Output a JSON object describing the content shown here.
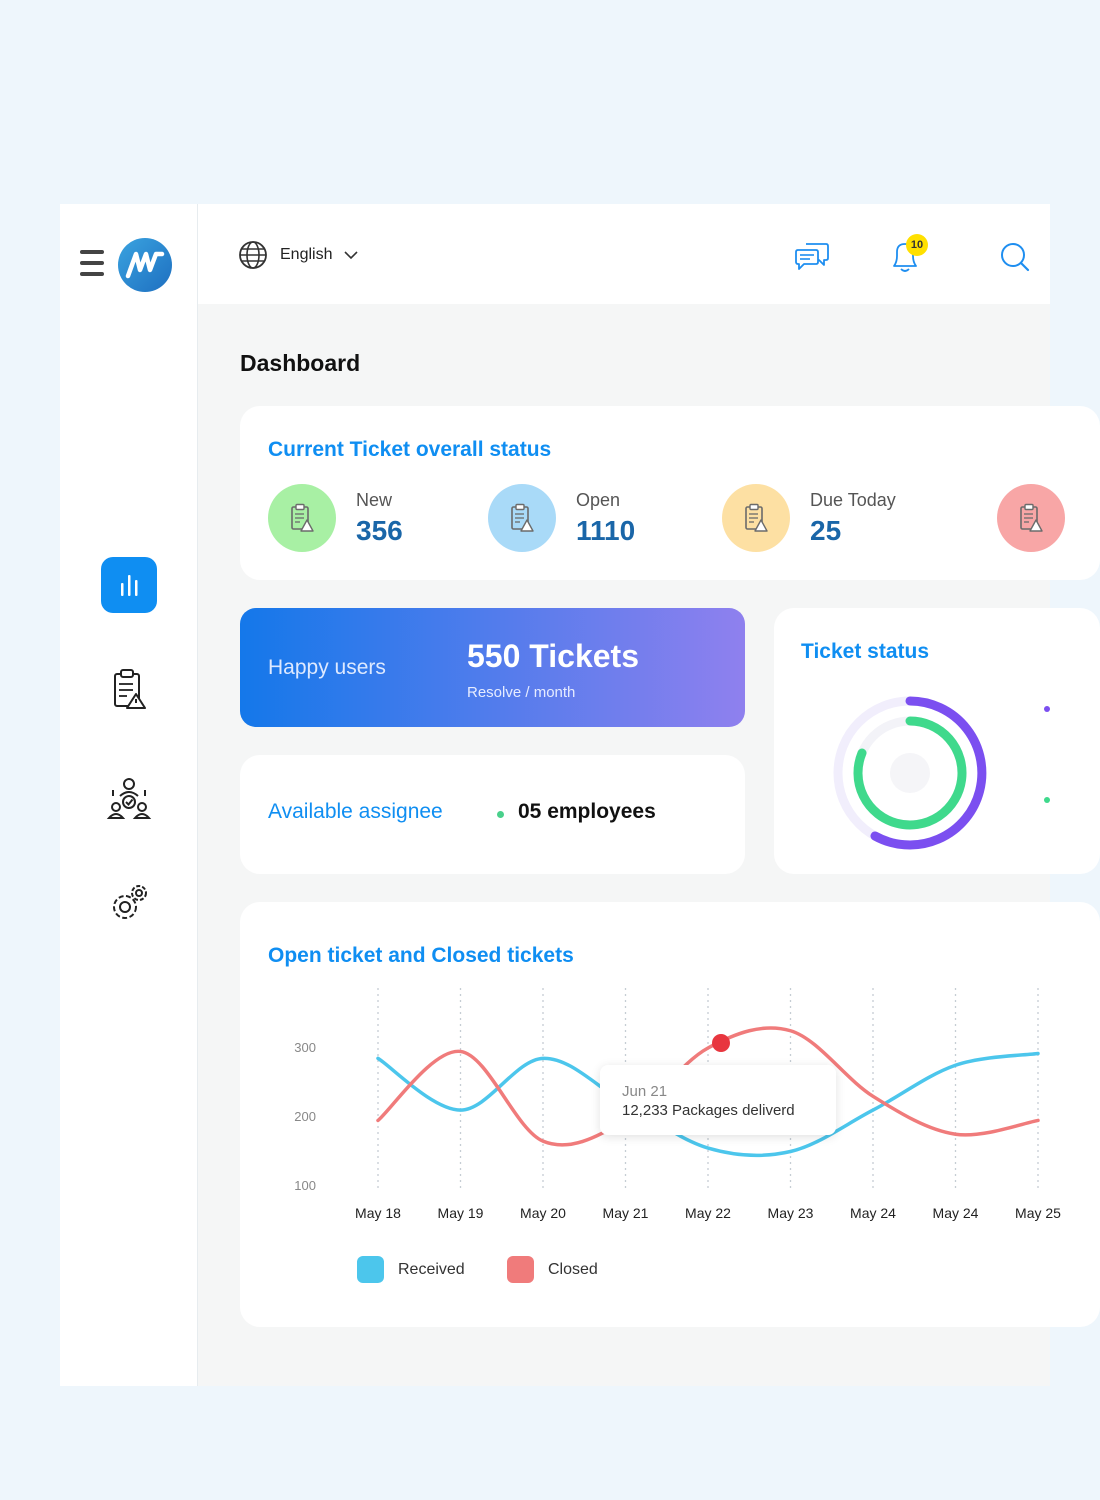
{
  "topbar": {
    "language": "English",
    "notifications_count": "10"
  },
  "page": {
    "title": "Dashboard"
  },
  "ticket_overview": {
    "title": "Current Ticket overall status",
    "stats": [
      {
        "label": "New",
        "value": "356",
        "color": "#a8f0a4"
      },
      {
        "label": "Open",
        "value": "1110",
        "color": "#a9daf8"
      },
      {
        "label": "Due Today",
        "value": "25",
        "color": "#fde0a3"
      },
      {
        "label": "",
        "value": "",
        "color": "#f8a6a6"
      }
    ]
  },
  "happy_users": {
    "label": "Happy users",
    "value": "550 Tickets",
    "sub": "Resolve / month"
  },
  "assignee": {
    "label": "Available assignee",
    "value": "05 employees"
  },
  "ticket_status": {
    "title": "Ticket status",
    "colors": {
      "outer": "#7b4ff0",
      "inner": "#3fd98c"
    }
  },
  "chart": {
    "title": "Open ticket and Closed tickets",
    "tooltip": {
      "date": "Jun 21",
      "text": "12,233 Packages deliverd"
    },
    "legend": [
      {
        "label": "Received",
        "color": "#4cc6ec"
      },
      {
        "label": "Closed",
        "color": "#f07b7b"
      }
    ]
  },
  "chart_data": {
    "type": "line",
    "categories": [
      "May 18",
      "May 19",
      "May 20",
      "May 21",
      "May 22",
      "May 23",
      "May 24",
      "May 24",
      "May 25"
    ],
    "yticks": [
      300,
      200,
      100
    ],
    "ylim": [
      100,
      300
    ],
    "series": [
      {
        "name": "Received",
        "color": "#4cc6ec",
        "values": [
          285,
          210,
          285,
          220,
          155,
          150,
          210,
          275,
          292
        ]
      },
      {
        "name": "Closed",
        "color": "#f07b7b",
        "values": [
          195,
          295,
          165,
          195,
          300,
          325,
          230,
          175,
          195
        ]
      }
    ],
    "highlight": {
      "series": "Closed",
      "index": 4,
      "color": "#e8363f"
    }
  }
}
